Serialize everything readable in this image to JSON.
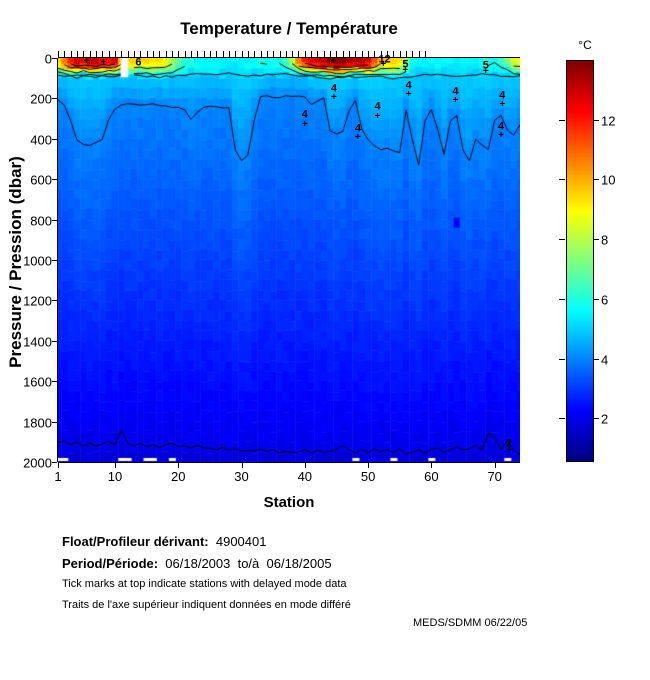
{
  "title": "Temperature / Température",
  "axes": {
    "xlabel": "Station",
    "ylabel": "Pressure / Pression (dbar)",
    "x_ticks": [
      1,
      10,
      20,
      30,
      40,
      50,
      60,
      70
    ],
    "y_ticks": [
      0,
      200,
      400,
      600,
      800,
      1000,
      1200,
      1400,
      1600,
      1800,
      2000
    ]
  },
  "colorbar": {
    "label": "°C",
    "ticks": [
      2,
      4,
      6,
      8,
      10,
      12
    ],
    "min": 0.6,
    "max": 14.0
  },
  "footer": {
    "float_label": "Float/Profileur dérivant:",
    "float_value": "  4900401",
    "period_label": "Period/Période:",
    "period_value": "  06/18/2003  to/à  06/18/2005",
    "note_en": "Tick marks at top indicate stations with delayed mode data",
    "note_fr": "Traits de l'axe supérieur indiquent données en mode différé",
    "credit": "MEDS/SDMM  06/22/05"
  },
  "chart_data": {
    "type": "heatmap",
    "title": "Temperature / Température",
    "xlabel": "Station",
    "ylabel": "Pressure / Pression (dbar)",
    "zlabel": "°C",
    "colormap": "jet",
    "xlim": [
      1,
      74
    ],
    "ylim": [
      0,
      2000
    ],
    "y_inverted": true,
    "zlim": [
      0.6,
      14.0
    ],
    "stations": 74,
    "contour_levels": [
      2,
      4,
      5,
      6,
      8,
      10,
      12
    ],
    "delayed_mode_stations_through": 59,
    "surface_temp": [
      9.5,
      10.5,
      12.2,
      12.8,
      12.5,
      12.8,
      13.2,
      12.5,
      12.2,
      12.6,
      10.0,
      9.8,
      9.6,
      9.4,
      9.6,
      9.4,
      9.6,
      9.0,
      8.0,
      7.0,
      6.2,
      5.9,
      5.7,
      5.6,
      5.7,
      5.6,
      5.5,
      5.6,
      5.4,
      5.5,
      5.6,
      5.8,
      6.0,
      6.0,
      5.9,
      6.0,
      6.5,
      8.0,
      10.5,
      12.0,
      12.8,
      13.0,
      13.4,
      13.6,
      13.8,
      13.8,
      13.5,
      13.6,
      13.4,
      13.0,
      11.5,
      10.0,
      9.8,
      9.6,
      9.2,
      7.5,
      5.9,
      5.6,
      5.5,
      5.6,
      5.8,
      5.6,
      5.5,
      5.4,
      5.5,
      5.6,
      5.5,
      5.8,
      6.2,
      6.0,
      6.5,
      7.0,
      8.5,
      9.0
    ],
    "mixed_layer_base_depth": [
      85,
      88,
      92,
      95,
      90,
      93,
      96,
      92,
      88,
      90,
      87,
      85,
      85,
      88,
      90,
      92,
      95,
      92,
      90,
      88,
      85,
      82,
      80,
      78,
      80,
      82,
      80,
      78,
      80,
      82,
      85,
      88,
      85,
      82,
      80,
      78,
      80,
      82,
      85,
      88,
      90,
      92,
      95,
      98,
      100,
      98,
      95,
      92,
      90,
      88,
      90,
      92,
      95,
      98,
      95,
      92,
      90,
      88,
      85,
      82,
      80,
      82,
      85,
      88,
      85,
      82,
      80,
      78,
      80,
      82,
      85,
      88,
      90,
      92
    ],
    "iso4_depth": [
      210,
      235,
      305,
      405,
      430,
      430,
      420,
      405,
      305,
      250,
      235,
      225,
      225,
      230,
      228,
      228,
      232,
      238,
      242,
      248,
      258,
      298,
      268,
      248,
      242,
      242,
      244,
      248,
      455,
      505,
      480,
      310,
      195,
      185,
      190,
      195,
      190,
      185,
      190,
      195,
      230,
      210,
      200,
      355,
      380,
      365,
      258,
      210,
      355,
      405,
      430,
      455,
      445,
      455,
      465,
      258,
      405,
      530,
      310,
      258,
      355,
      480,
      310,
      282,
      455,
      505,
      405,
      430,
      455,
      310,
      282,
      355,
      380,
      330
    ],
    "iso2_depth": [
      1905,
      1895,
      1915,
      1900,
      1920,
      1905,
      1925,
      1910,
      1898,
      1915,
      1845,
      1905,
      1918,
      1908,
      1922,
      1912,
      1926,
      1916,
      1908,
      1922,
      1918,
      1928,
      1922,
      1932,
      1928,
      1940,
      1932,
      1946,
      1938,
      1950,
      1942,
      1948,
      1938,
      1948,
      1942,
      1952,
      1946,
      1956,
      1948,
      1942,
      1952,
      1948,
      1958,
      1952,
      1942,
      1918,
      1938,
      1956,
      1942,
      1952,
      1932,
      1948,
      1938,
      1952,
      1942,
      1956,
      1948,
      1938,
      1952,
      1942,
      1928,
      1948,
      1938,
      1922,
      1942,
      1932,
      1918,
      1938,
      1858,
      1878,
      1938,
      1898,
      1948,
      1965
    ],
    "bottom_temp": 1.7,
    "surface_gap": {
      "station_from": 10.9,
      "station_to": 12.1,
      "pressure_to": 95
    },
    "missing_bottom_stations": [
      1,
      2,
      11,
      12,
      15,
      16,
      19,
      48,
      54,
      60,
      72
    ],
    "anomaly_points": [
      {
        "station": 64,
        "pressure": 815,
        "temp": 2.3
      }
    ],
    "contour_labels": [
      {
        "text": "6",
        "station": 13.7,
        "pressure": 25
      },
      {
        "text": "12",
        "station": 52.6,
        "pressure": 8
      },
      {
        "text": "5",
        "station": 55.9,
        "pressure": 35
      },
      {
        "text": "5",
        "station": 68.6,
        "pressure": 40
      },
      {
        "text": "4",
        "station": 40.0,
        "pressure": 280
      },
      {
        "text": "4",
        "station": 44.6,
        "pressure": 155
      },
      {
        "text": "4",
        "station": 51.5,
        "pressure": 245
      },
      {
        "text": "4",
        "station": 48.4,
        "pressure": 350
      },
      {
        "text": "4",
        "station": 56.4,
        "pressure": 140
      },
      {
        "text": "4",
        "station": 63.8,
        "pressure": 170
      },
      {
        "text": "4",
        "station": 71.2,
        "pressure": 190
      },
      {
        "text": "4",
        "station": 71.0,
        "pressure": 340
      },
      {
        "text": "2",
        "station": 72.3,
        "pressure": 1910
      }
    ],
    "plus_marks": [
      {
        "station": 5.5,
        "pressure": 20
      },
      {
        "station": 8.2,
        "pressure": 25
      },
      {
        "station": 44.5,
        "pressure": 18
      },
      {
        "station": 52.4,
        "pressure": 35
      },
      {
        "station": 55.9,
        "pressure": 65
      },
      {
        "station": 68.6,
        "pressure": 70
      },
      {
        "station": 40.0,
        "pressure": 330
      },
      {
        "station": 44.6,
        "pressure": 200
      },
      {
        "station": 51.5,
        "pressure": 290
      },
      {
        "station": 48.4,
        "pressure": 395
      },
      {
        "station": 56.4,
        "pressure": 185
      },
      {
        "station": 63.8,
        "pressure": 215
      },
      {
        "station": 71.2,
        "pressure": 235
      },
      {
        "station": 71.0,
        "pressure": 385
      },
      {
        "station": 72.3,
        "pressure": 1945
      }
    ]
  }
}
